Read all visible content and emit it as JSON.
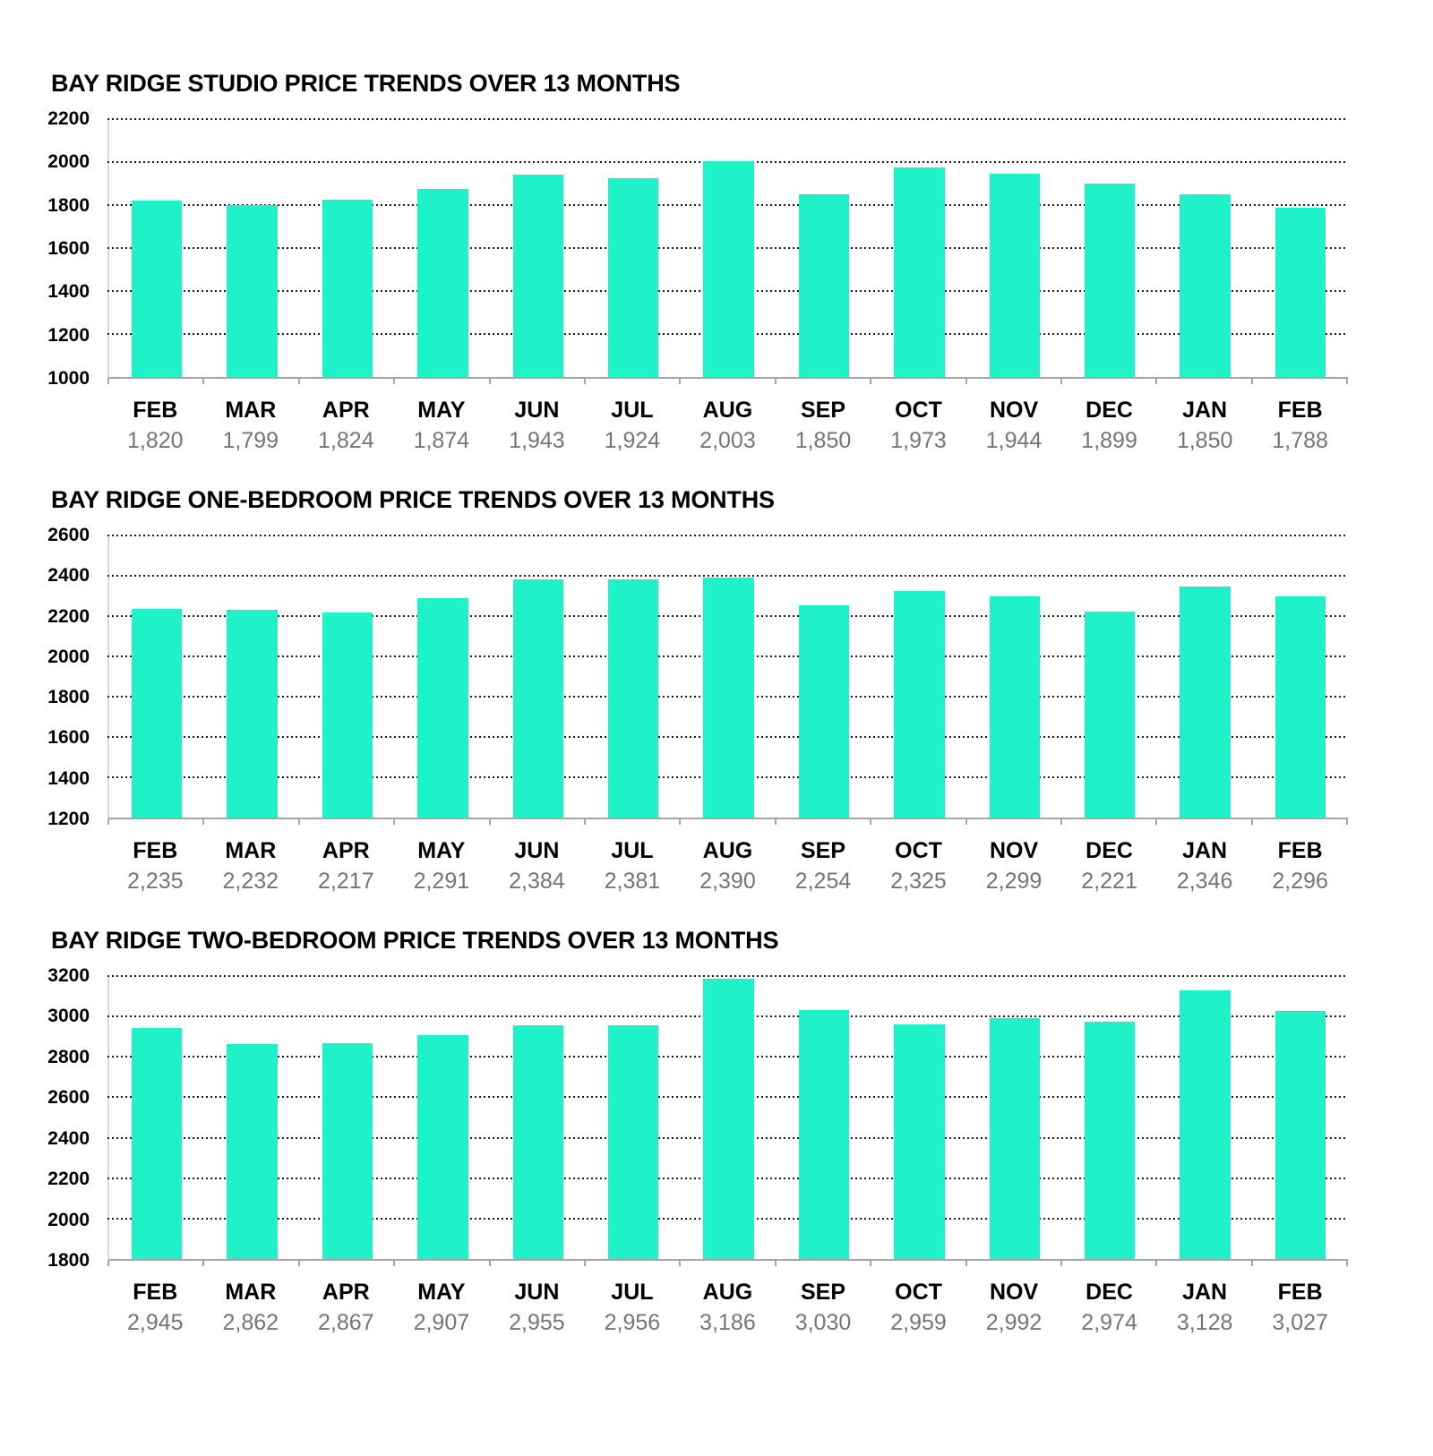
{
  "style": {
    "bar_color": "#1ff2c8",
    "grid_color": "#1a1a1a",
    "axis_color": "#a6a6a6",
    "yaxis_line_color": "#d9d9d9",
    "value_label_color": "#757575",
    "title_color": "#000000",
    "background": "#ffffff"
  },
  "chart_data": [
    {
      "type": "bar",
      "title": "BAY RIDGE STUDIO PRICE TRENDS OVER 13 MONTHS",
      "xlabel": "",
      "ylabel": "",
      "legend": false,
      "grid": true,
      "ylim": [
        1000,
        2200
      ],
      "ytick_step": 200,
      "categories": [
        "FEB",
        "MAR",
        "APR",
        "MAY",
        "JUN",
        "JUL",
        "AUG",
        "SEP",
        "OCT",
        "NOV",
        "DEC",
        "JAN",
        "FEB"
      ],
      "values": [
        1820,
        1799,
        1824,
        1874,
        1943,
        1924,
        2003,
        1850,
        1973,
        1944,
        1899,
        1850,
        1788
      ],
      "value_labels": [
        "1,820",
        "1,799",
        "1,824",
        "1,874",
        "1,943",
        "1,924",
        "2,003",
        "1,850",
        "1,973",
        "1,944",
        "1,899",
        "1,850",
        "1,788"
      ]
    },
    {
      "type": "bar",
      "title": "BAY RIDGE ONE-BEDROOM PRICE TRENDS OVER 13 MONTHS",
      "xlabel": "",
      "ylabel": "",
      "legend": false,
      "grid": true,
      "ylim": [
        1200,
        2600
      ],
      "ytick_step": 200,
      "categories": [
        "FEB",
        "MAR",
        "APR",
        "MAY",
        "JUN",
        "JUL",
        "AUG",
        "SEP",
        "OCT",
        "NOV",
        "DEC",
        "JAN",
        "FEB"
      ],
      "values": [
        2235,
        2232,
        2217,
        2291,
        2384,
        2381,
        2390,
        2254,
        2325,
        2299,
        2221,
        2346,
        2296
      ],
      "value_labels": [
        "2,235",
        "2,232",
        "2,217",
        "2,291",
        "2,384",
        "2,381",
        "2,390",
        "2,254",
        "2,325",
        "2,299",
        "2,221",
        "2,346",
        "2,296"
      ]
    },
    {
      "type": "bar",
      "title": "BAY RIDGE TWO-BEDROOM PRICE TRENDS OVER 13 MONTHS",
      "xlabel": "",
      "ylabel": "",
      "legend": false,
      "grid": true,
      "ylim": [
        1800,
        3200
      ],
      "ytick_step": 200,
      "categories": [
        "FEB",
        "MAR",
        "APR",
        "MAY",
        "JUN",
        "JUL",
        "AUG",
        "SEP",
        "OCT",
        "NOV",
        "DEC",
        "JAN",
        "FEB"
      ],
      "values": [
        2945,
        2862,
        2867,
        2907,
        2955,
        2956,
        3186,
        3030,
        2959,
        2992,
        2974,
        3128,
        3027
      ],
      "value_labels": [
        "2,945",
        "2,862",
        "2,867",
        "2,907",
        "2,955",
        "2,956",
        "3,186",
        "3,030",
        "2,959",
        "2,992",
        "2,974",
        "3,128",
        "3,027"
      ]
    }
  ]
}
